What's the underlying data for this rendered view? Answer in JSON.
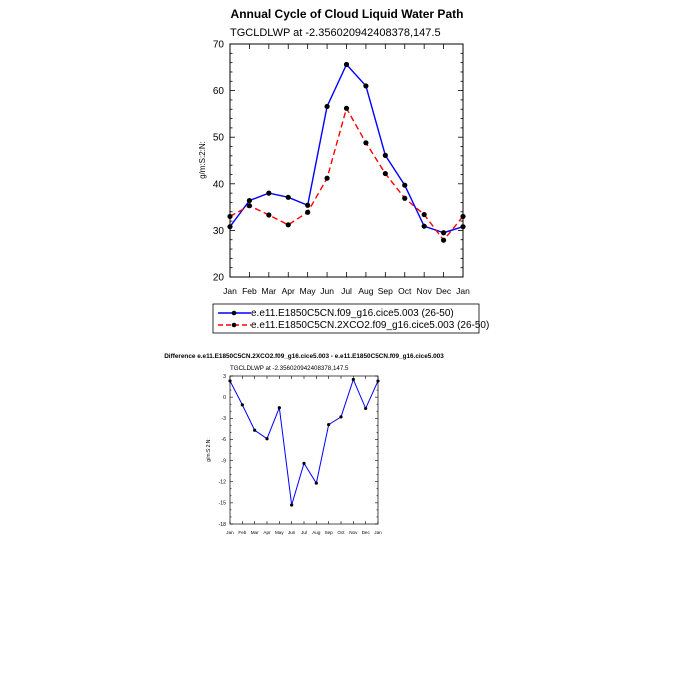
{
  "chart_data": [
    {
      "type": "line",
      "title": "Annual Cycle of Cloud Liquid Water Path",
      "subtitle": "TGCLDLWP at -2.356020942408378,147.5",
      "xlabel": "",
      "ylabel": "g/m:S:2:N:",
      "categories": [
        "Jan",
        "Feb",
        "Mar",
        "Apr",
        "May",
        "Jun",
        "Jul",
        "Aug",
        "Sep",
        "Oct",
        "Nov",
        "Dec",
        "Jan"
      ],
      "ylim": [
        20,
        70
      ],
      "yticks": [
        20,
        30,
        40,
        50,
        60,
        70
      ],
      "series": [
        {
          "name": "e.e11.E1850C5CN.f09_g16.cice5.003 (26-50)",
          "color": "#0000ff",
          "dash": "solid",
          "values": [
            30.8,
            36.4,
            38.0,
            37.1,
            35.4,
            56.6,
            65.6,
            61.0,
            46.1,
            39.7,
            30.9,
            29.5,
            30.8
          ]
        },
        {
          "name": "e.e11.E1850C5CN.2XCO2.f09_g16.cice5.003 (26-50)",
          "color": "#ff0000",
          "dash": "dashed",
          "values": [
            33.0,
            35.3,
            33.3,
            31.2,
            33.9,
            41.2,
            56.2,
            48.8,
            42.2,
            36.9,
            33.4,
            27.9,
            33.0
          ]
        }
      ],
      "legend_position": "bottom"
    },
    {
      "type": "line",
      "title": "Difference e.e11.E1850C5CN.2XCO2.f09_g16.cice5.003 - e.e11.E1850C5CN.f09_g16.cice5.003",
      "subtitle": "TGCLDLWP at -2.356020942408378,147.5",
      "xlabel": "",
      "ylabel": "g/m:S:2:N:",
      "categories": [
        "Jan",
        "Feb",
        "Mar",
        "Apr",
        "May",
        "Jun",
        "Jul",
        "Aug",
        "Sep",
        "Oct",
        "Nov",
        "Dec",
        "Jan"
      ],
      "ylim": [
        -18,
        3
      ],
      "yticks": [
        -18,
        -15,
        -12,
        -9,
        -6,
        -3,
        0,
        3
      ],
      "series": [
        {
          "color": "#0000ff",
          "dash": "solid",
          "values": [
            2.3,
            -1.1,
            -4.7,
            -5.9,
            -1.5,
            -15.3,
            -9.4,
            -12.2,
            -3.9,
            -2.8,
            2.5,
            -1.6,
            2.3
          ]
        }
      ]
    }
  ]
}
